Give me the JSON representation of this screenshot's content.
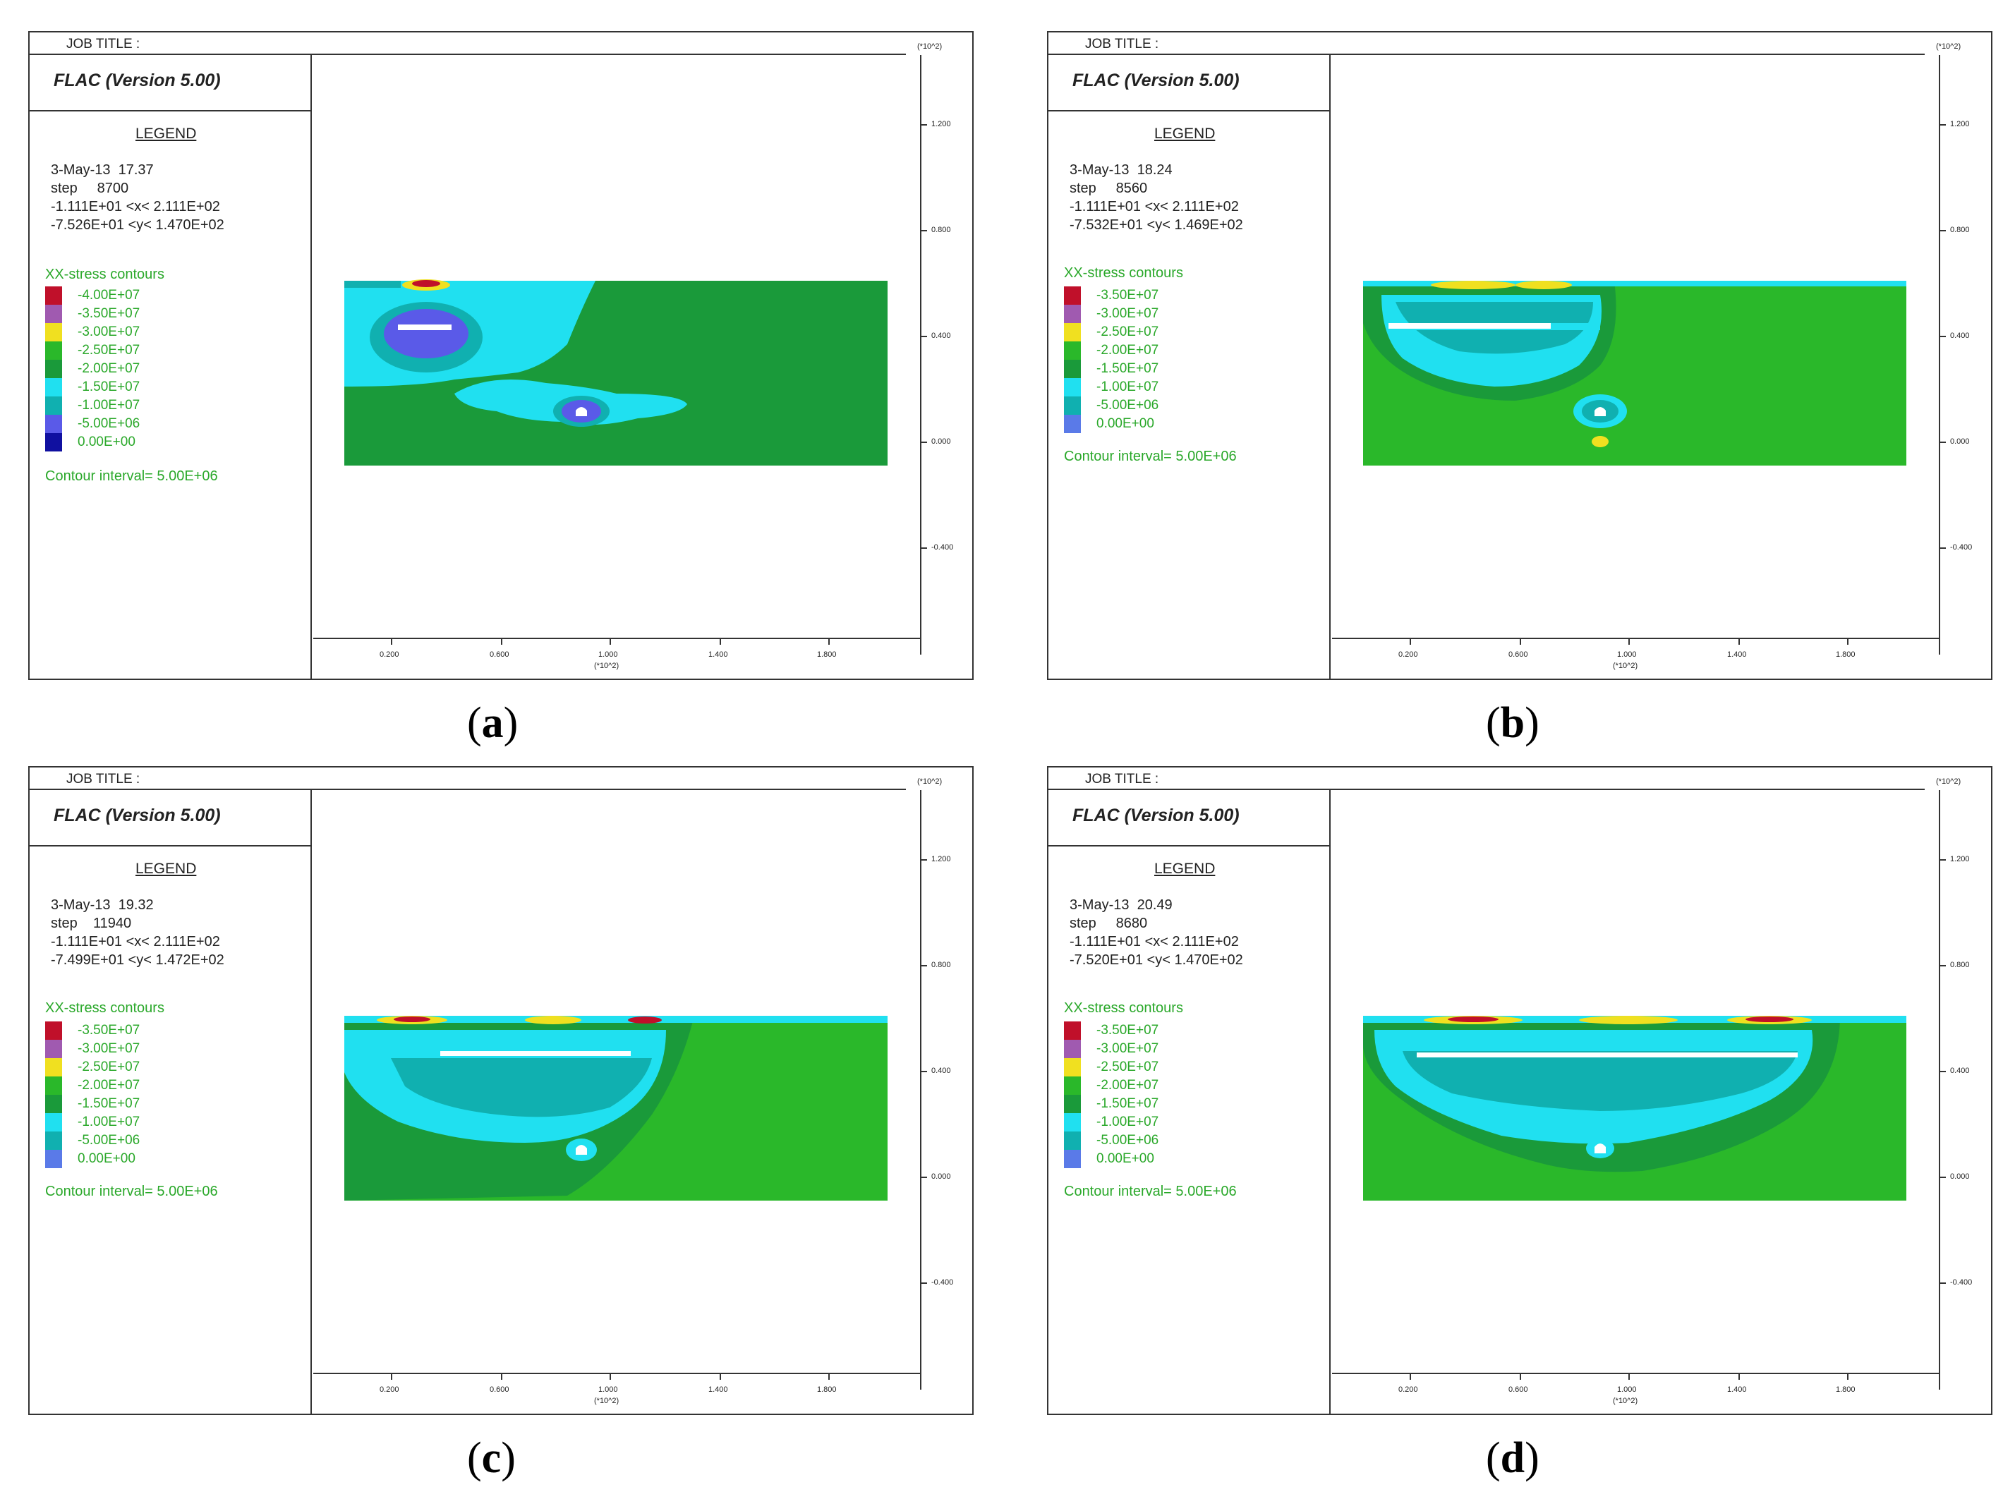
{
  "panels": [
    {
      "caption": "a",
      "job_title": "JOB TITLE :",
      "program": "FLAC (Version 5.00)",
      "legend_heading": "LEGEND",
      "date_time": "3-May-13  17.37",
      "step": "step     8700",
      "x_range": "-1.111E+01 <x< 2.111E+02",
      "y_range": "-7.526E+01 <y< 1.470E+02",
      "contour_title": "XX-stress contours",
      "levels": [
        "-4.00E+07",
        "-3.50E+07",
        "-3.00E+07",
        "-2.50E+07",
        "-2.00E+07",
        "-1.50E+07",
        "-1.00E+07",
        "-5.00E+06",
        "0.00E+00"
      ],
      "level_colors": [
        "#c0102a",
        "#e8304a",
        "#a05ab0",
        "#f0e020",
        "#2ab82a",
        "#1a9a3a",
        "#20e0f0",
        "#10b0b0",
        "#5a5ae8",
        "#1010a0"
      ],
      "contour_interval": "Contour interval=  5.00E+06"
    },
    {
      "caption": "b",
      "job_title": "JOB TITLE :",
      "program": "FLAC (Version 5.00)",
      "legend_heading": "LEGEND",
      "date_time": "3-May-13  18.24",
      "step": "step     8560",
      "x_range": "-1.111E+01 <x< 2.111E+02",
      "y_range": "-7.532E+01 <y< 1.469E+02",
      "contour_title": "XX-stress contours",
      "levels": [
        "-3.50E+07",
        "-3.00E+07",
        "-2.50E+07",
        "-2.00E+07",
        "-1.50E+07",
        "-1.00E+07",
        "-5.00E+06",
        "0.00E+00"
      ],
      "level_colors": [
        "#c0102a",
        "#e8304a",
        "#a05ab0",
        "#f0e020",
        "#2ab82a",
        "#1a9a3a",
        "#20e0f0",
        "#10b0b0",
        "#5a7ae8"
      ],
      "contour_interval": "Contour interval=  5.00E+06"
    },
    {
      "caption": "c",
      "job_title": "JOB TITLE :",
      "program": "FLAC (Version 5.00)",
      "legend_heading": "LEGEND",
      "date_time": "3-May-13  19.32",
      "step": "step    11940",
      "x_range": "-1.111E+01 <x< 2.111E+02",
      "y_range": "-7.499E+01 <y< 1.472E+02",
      "contour_title": "XX-stress contours",
      "levels": [
        "-3.50E+07",
        "-3.00E+07",
        "-2.50E+07",
        "-2.00E+07",
        "-1.50E+07",
        "-1.00E+07",
        "-5.00E+06",
        "0.00E+00"
      ],
      "level_colors": [
        "#c0102a",
        "#e8304a",
        "#a05ab0",
        "#f0e020",
        "#2ab82a",
        "#1a9a3a",
        "#20e0f0",
        "#10b0b0",
        "#5a7ae8"
      ],
      "contour_interval": "Contour interval=  5.00E+06"
    },
    {
      "caption": "d",
      "job_title": "JOB TITLE :",
      "program": "FLAC (Version 5.00)",
      "legend_heading": "LEGEND",
      "date_time": "3-May-13  20.49",
      "step": "step     8680",
      "x_range": "-1.111E+01 <x< 2.111E+02",
      "y_range": "-7.520E+01 <y< 1.470E+02",
      "contour_title": "XX-stress contours",
      "levels": [
        "-3.50E+07",
        "-3.00E+07",
        "-2.50E+07",
        "-2.00E+07",
        "-1.50E+07",
        "-1.00E+07",
        "-5.00E+06",
        "0.00E+00"
      ],
      "level_colors": [
        "#c0102a",
        "#e8304a",
        "#a05ab0",
        "#f0e020",
        "#2ab82a",
        "#1a9a3a",
        "#20e0f0",
        "#10b0b0",
        "#5a7ae8"
      ],
      "contour_interval": "Contour interval=  5.00E+06"
    }
  ],
  "axis": {
    "scale_label": "(*10^2)",
    "y_ticks": [
      "1.200",
      "0.800",
      "0.400",
      "0.000",
      "-0.400"
    ],
    "x_ticks": [
      "0.200",
      "0.600",
      "1.000",
      "1.400",
      "1.800"
    ]
  }
}
